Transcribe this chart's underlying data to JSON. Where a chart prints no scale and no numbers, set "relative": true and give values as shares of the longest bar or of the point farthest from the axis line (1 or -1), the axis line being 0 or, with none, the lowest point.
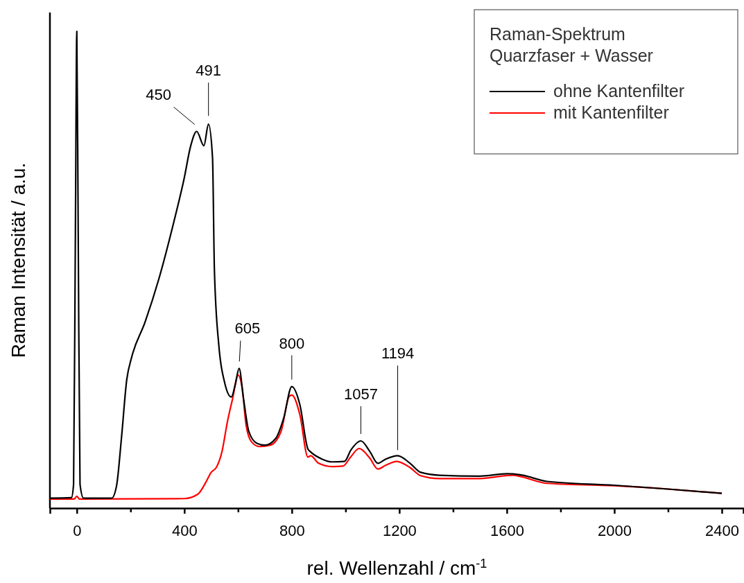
{
  "chart_data": {
    "type": "line",
    "relative": true,
    "xlabel": "rel. Wellenzahl / cm$^{-1}$",
    "ylabel": "Raman Intensität / a.u.",
    "legend_title": "Raman-Spektrum\nQuarzfaser + Wasser",
    "legend": "top right",
    "grid": false,
    "marker": "none",
    "line_style": "solid",
    "xlim": [
      -100,
      2480
    ],
    "xticks": [
      0,
      {
        "value": 200,
        "label": null
      },
      400,
      {
        "value": 600,
        "label": null
      },
      800,
      {
        "value": 1000,
        "label": null
      },
      1200,
      {
        "value": 1400,
        "label": null
      },
      1600,
      {
        "value": 1800,
        "label": null
      },
      2000,
      {
        "value": 2200,
        "label": null
      },
      2400
    ],
    "series": [
      {
        "name": "ohne Kantenfilter",
        "color": "#000000",
        "x": [
          -100,
          -20,
          -12,
          -5,
          0,
          5,
          12,
          25,
          130,
          148,
          166,
          186,
          204,
          254,
          305,
          361,
          399,
          424,
          446,
          473,
          490,
          505,
          512,
          529,
          549,
          575,
          590,
          604,
          620,
          640,
          670,
          700,
          740,
          770,
          800,
          830,
          860,
          868,
          912,
          950,
          996,
          1020,
          1057,
          1090,
          1120,
          1150,
          1194,
          1240,
          1280,
          1350,
          1500,
          1600,
          1650,
          1750,
          2000,
          2200,
          2400
        ],
        "values": [
          0.021,
          0.022,
          0.05,
          0.6,
          1,
          0.6,
          0.05,
          0.021,
          0.021,
          0.047,
          0.146,
          0.27,
          0.316,
          0.39,
          0.48,
          0.6,
          0.69,
          0.76,
          0.79,
          0.76,
          0.805,
          0.735,
          0.5,
          0.338,
          0.266,
          0.233,
          0.26,
          0.293,
          0.231,
          0.161,
          0.136,
          0.132,
          0.146,
          0.189,
          0.255,
          0.217,
          0.124,
          0.119,
          0.103,
          0.097,
          0.098,
          0.122,
          0.141,
          0.119,
          0.094,
          0.103,
          0.11,
          0.094,
          0.075,
          0.069,
          0.067,
          0.072,
          0.07,
          0.056,
          0.048,
          0.04,
          0.031
        ]
      },
      {
        "name": "mit Kantenfilter",
        "color": "#ff0000",
        "x": [
          -100,
          -10,
          0,
          10,
          400,
          450,
          480,
          500,
          520,
          540,
          560,
          580,
          600,
          615,
          630,
          650,
          680,
          720,
          760,
          790,
          800,
          830,
          860,
          870,
          900,
          950,
          990,
          1020,
          1050,
          1090,
          1120,
          1150,
          1190,
          1240,
          1280,
          1350,
          1500,
          1620,
          1750,
          2000,
          2200,
          2400
        ],
        "values": [
          0.019,
          0.019,
          0.025,
          0.019,
          0.02,
          0.029,
          0.054,
          0.075,
          0.086,
          0.118,
          0.18,
          0.23,
          0.279,
          0.253,
          0.174,
          0.139,
          0.129,
          0.132,
          0.161,
          0.234,
          0.237,
          0.196,
          0.107,
          0.11,
          0.094,
          0.087,
          0.088,
          0.108,
          0.125,
          0.105,
          0.082,
          0.09,
          0.098,
          0.085,
          0.068,
          0.062,
          0.062,
          0.069,
          0.052,
          0.047,
          0.04,
          0.031
        ]
      }
    ],
    "annotations": [
      {
        "text": "450",
        "x": 446,
        "y": 0.79
      },
      {
        "text": "491",
        "x": 490,
        "y": 0.805
      },
      {
        "text": "605",
        "x": 604,
        "y": 0.293
      },
      {
        "text": "800",
        "x": 800,
        "y": 0.255
      },
      {
        "text": "1057",
        "x": 1057,
        "y": 0.141
      },
      {
        "text": "1194",
        "x": 1194,
        "y": 0.11
      }
    ]
  }
}
